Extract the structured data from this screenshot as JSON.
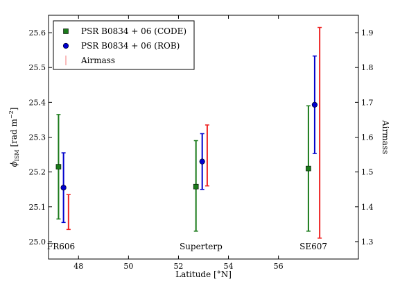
{
  "chart_data": {
    "type": "scatter",
    "xlabel": "Latitude [°N]",
    "ylabel": "ϕISM [rad m⁻²]",
    "ylabel_parts": {
      "symbol": "ϕ",
      "sub": "ISM",
      "unit_open": " [rad m",
      "sup": "−2",
      "unit_close": "]"
    },
    "y2label": "Airmass",
    "xlim": [
      46.8,
      59.2
    ],
    "ylim": [
      24.95,
      25.65
    ],
    "y2lim": [
      1.25,
      1.95
    ],
    "xticks": [
      48,
      50,
      52,
      54,
      56
    ],
    "yticks": [
      25.0,
      25.1,
      25.2,
      25.3,
      25.4,
      25.5,
      25.6
    ],
    "y2ticks": [
      1.3,
      1.4,
      1.5,
      1.6,
      1.7,
      1.8,
      1.9
    ],
    "station_labels": [
      {
        "text": "FR606",
        "x": 47.3
      },
      {
        "text": "Superterp",
        "x": 52.9
      },
      {
        "text": "SE607",
        "x": 57.4
      }
    ],
    "series": [
      {
        "name": "PSR B0834 + 06 (CODE)",
        "marker": "square",
        "color": "#1a7a1a",
        "axis": "left",
        "points": [
          {
            "x": 47.2,
            "y": 25.215,
            "lo": 25.065,
            "hi": 25.365
          },
          {
            "x": 52.7,
            "y": 25.158,
            "lo": 25.03,
            "hi": 25.29
          },
          {
            "x": 57.2,
            "y": 25.21,
            "lo": 25.03,
            "hi": 25.39
          }
        ]
      },
      {
        "name": "PSR B0834 + 06 (ROB)",
        "marker": "circle",
        "color": "#0000cc",
        "axis": "left",
        "points": [
          {
            "x": 47.4,
            "y": 25.155,
            "lo": 25.055,
            "hi": 25.255
          },
          {
            "x": 52.95,
            "y": 25.23,
            "lo": 25.15,
            "hi": 25.31
          },
          {
            "x": 57.45,
            "y": 25.393,
            "lo": 25.253,
            "hi": 25.533
          }
        ]
      },
      {
        "name": "Airmass",
        "marker": "errorbar",
        "color": "#ee2222",
        "axis": "right",
        "points": [
          {
            "x": 47.6,
            "lo": 1.335,
            "hi": 1.435
          },
          {
            "x": 53.15,
            "lo": 1.46,
            "hi": 1.635
          },
          {
            "x": 57.65,
            "lo": 1.31,
            "hi": 1.915
          }
        ]
      }
    ],
    "legend": {
      "placement": "top-left"
    }
  }
}
